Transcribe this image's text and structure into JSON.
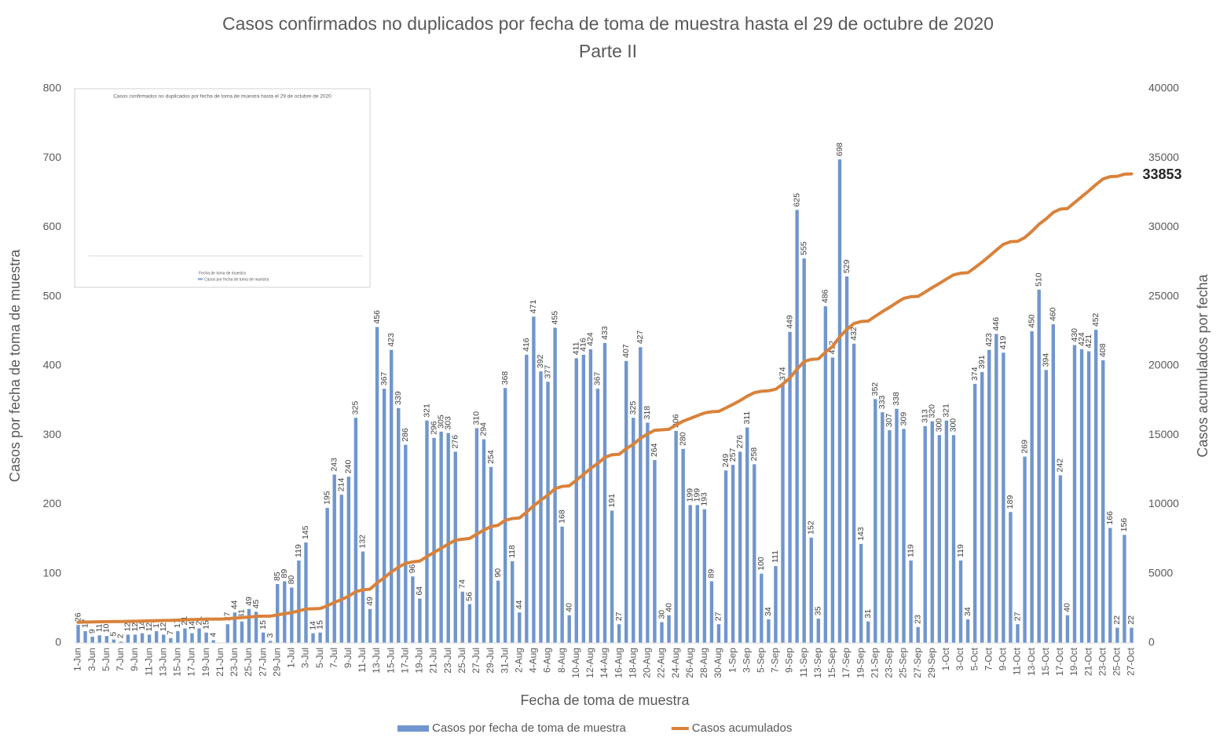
{
  "chart_data": {
    "type": "bar",
    "title": "Casos confirmados no duplicados por fecha de toma de muestra hasta el 29 de octubre de 2020",
    "subtitle": "Parte II",
    "xlabel": "Fecha de toma de muestra",
    "ylabel": "Casos por fecha de toma de muestra",
    "y2label": "Casos acumulados por fecha",
    "ylim": [
      0,
      800
    ],
    "yticks": [
      0,
      100,
      200,
      300,
      400,
      500,
      600,
      700,
      800
    ],
    "y2lim": [
      0,
      40000
    ],
    "y2ticks": [
      0,
      5000,
      10000,
      15000,
      20000,
      25000,
      30000,
      35000,
      40000
    ],
    "grid": false,
    "legend": "bottom",
    "categories": [
      "1-Jun",
      null,
      "3-Jun",
      null,
      "5-Jun",
      null,
      "7-Jun",
      null,
      "9-Jun",
      null,
      "11-Jun",
      null,
      "13-Jun",
      null,
      "15-Jun",
      null,
      "17-Jun",
      null,
      "19-Jun",
      null,
      "21-Jun",
      null,
      "23-Jun",
      null,
      "25-Jun",
      null,
      "27-Jun",
      null,
      "29-Jun",
      null,
      "1-Jul",
      null,
      "3-Jul",
      null,
      "5-Jul",
      null,
      "7-Jul",
      null,
      "9-Jul",
      null,
      "11-Jul",
      null,
      "13-Jul",
      null,
      "15-Jul",
      null,
      "17-Jul",
      null,
      "19-Jul",
      null,
      "21-Jul",
      null,
      "23-Jul",
      null,
      "25-Jul",
      null,
      "27-Jul",
      null,
      "29-Jul",
      null,
      "31-Jul",
      null,
      "2-Aug",
      null,
      "4-Aug",
      null,
      "6-Aug",
      null,
      "8-Aug",
      null,
      "10-Aug",
      null,
      "12-Aug",
      null,
      "14-Aug",
      null,
      "16-Aug",
      null,
      "18-Aug",
      null,
      "20-Aug",
      null,
      "22-Aug",
      null,
      "24-Aug",
      null,
      "26-Aug",
      null,
      "28-Aug",
      null,
      "30-Aug",
      null,
      "1-Sep",
      null,
      "3-Sep",
      null,
      "5-Sep",
      null,
      "7-Sep",
      null,
      "9-Sep",
      null,
      "11-Sep",
      null,
      "13-Sep",
      null,
      "15-Sep",
      null,
      "17-Sep",
      null,
      "19-Sep",
      null,
      "21-Sep",
      null,
      "23-Sep",
      null,
      "25-Sep",
      null,
      "27-Sep",
      null,
      "29-Sep",
      null,
      "1-Oct",
      null,
      "3-Oct",
      null,
      "5-Oct",
      null,
      "7-Oct",
      null,
      "9-Oct",
      null,
      "11-Oct",
      null,
      "13-Oct",
      null,
      "15-Oct",
      null,
      "17-Oct",
      null,
      "19-Oct",
      null,
      "21-Oct",
      null,
      "23-Oct",
      null,
      "25-Oct",
      null,
      "27-Oct"
    ],
    "series": [
      {
        "name": "Casos por fecha de toma de muestra",
        "type": "bar",
        "color": "#7096cd",
        "axis": "y",
        "values": [
          26,
          17,
          9,
          11,
          10,
          5,
          2,
          12,
          12,
          14,
          12,
          17,
          12,
          7,
          17,
          21,
          14,
          21,
          15,
          4,
          null,
          27,
          44,
          31,
          49,
          45,
          15,
          3,
          85,
          89,
          80,
          119,
          145,
          14,
          15,
          195,
          243,
          214,
          240,
          325,
          132,
          49,
          456,
          367,
          423,
          339,
          286,
          96,
          64,
          321,
          296,
          305,
          303,
          276,
          74,
          56,
          310,
          294,
          254,
          90,
          368,
          118,
          44,
          416,
          471,
          392,
          377,
          455,
          168,
          40,
          411,
          416,
          424,
          367,
          433,
          191,
          27,
          407,
          325,
          427,
          318,
          264,
          30,
          40,
          306,
          280,
          199,
          199,
          193,
          89,
          27,
          249,
          257,
          276,
          311,
          258,
          100,
          34,
          111,
          374,
          449,
          625,
          555,
          152,
          35,
          486,
          412,
          698,
          529,
          432,
          143,
          31,
          352,
          333,
          307,
          338,
          309,
          119,
          23,
          313,
          320,
          300,
          321,
          300,
          119,
          34,
          374,
          391,
          423,
          446,
          419,
          189,
          27,
          269,
          450,
          510,
          394,
          460,
          242,
          40,
          430,
          424,
          421,
          452,
          408,
          166,
          22,
          156,
          22
        ]
      },
      {
        "name": "Casos acumulados",
        "type": "line",
        "color": "#d9823b",
        "axis": "y2",
        "values": [
          1490,
          1507,
          1516,
          1527,
          1537,
          1542,
          1544,
          1556,
          1568,
          1582,
          1594,
          1611,
          1623,
          1630,
          1647,
          1668,
          1682,
          1703,
          1718,
          1722,
          1722,
          1749,
          1793,
          1824,
          1873,
          1918,
          1933,
          1936,
          2021,
          2110,
          2190,
          2309,
          2454,
          2468,
          2483,
          2678,
          2921,
          3135,
          3375,
          3700,
          3832,
          3881,
          4337,
          4704,
          5127,
          5466,
          5752,
          5848,
          5912,
          6233,
          6529,
          6834,
          7137,
          7413,
          7487,
          7543,
          7853,
          8147,
          8401,
          8491,
          8859,
          8977,
          9021,
          9437,
          9908,
          10300,
          10677,
          11132,
          11300,
          11340,
          11751,
          12167,
          12591,
          12958,
          13391,
          13582,
          13609,
          14016,
          14341,
          14768,
          15086,
          15350,
          15380,
          15420,
          15726,
          16006,
          16205,
          16404,
          16597,
          16686,
          16713,
          16962,
          17219,
          17495,
          17806,
          18064,
          18164,
          18198,
          18309,
          18683,
          19132,
          19757,
          20312,
          20464,
          20499,
          20985,
          21397,
          22095,
          22624,
          23056,
          23199,
          23230,
          23582,
          23915,
          24222,
          24560,
          24869,
          24988,
          25011,
          25324,
          25644,
          25944,
          26265,
          26565,
          26684,
          26718,
          27092,
          27483,
          27906,
          28352,
          28771,
          28960,
          28987,
          29256,
          29706,
          30216,
          30610,
          31070,
          31312,
          31352,
          31782,
          32206,
          32627,
          33079,
          33487,
          33653,
          33675,
          33831,
          33853
        ]
      }
    ]
  }
}
